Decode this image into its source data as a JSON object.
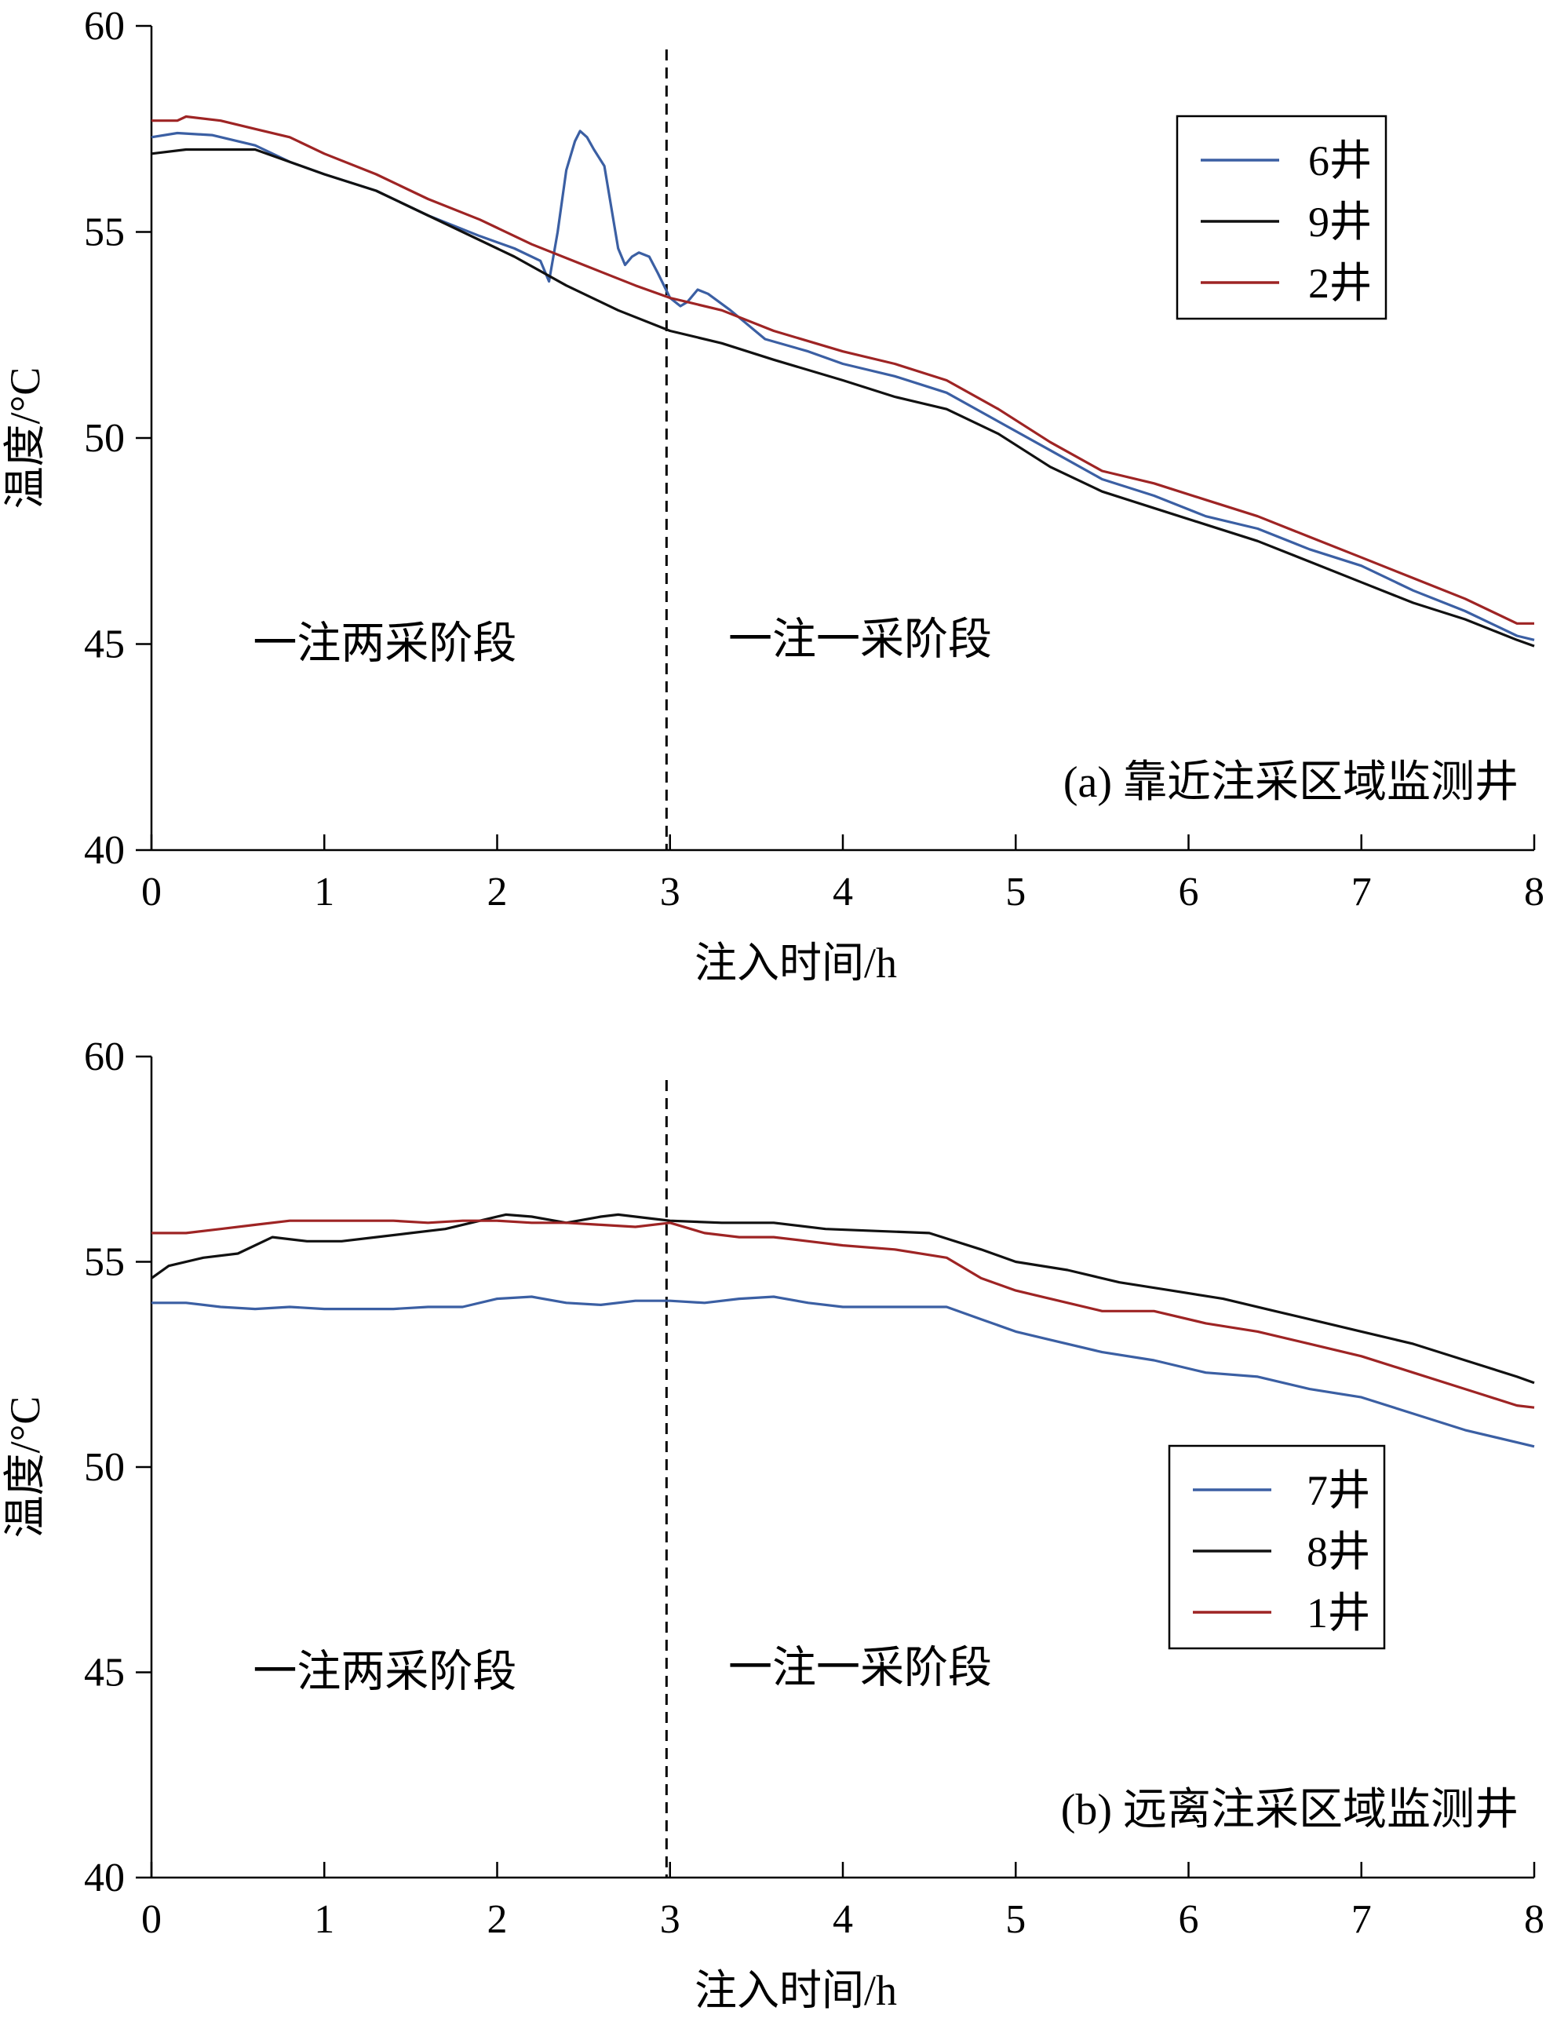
{
  "chart_data": [
    {
      "type": "line",
      "panel_label": "(a) 靠近注采区域监测井",
      "xlabel": "注入时间/h",
      "ylabel": "温度/°C",
      "xlim": [
        0,
        8
      ],
      "ylim": [
        40,
        60
      ],
      "x_ticks": [
        0,
        1,
        2,
        3,
        4,
        5,
        6,
        7,
        8
      ],
      "y_ticks": [
        40,
        45,
        50,
        55,
        60
      ],
      "grid": false,
      "legend_position": "top-right",
      "annotations": [
        {
          "text": "一注两采阶段",
          "x": 1.35,
          "y": 45
        },
        {
          "text": "一注一采阶段",
          "x": 4.1,
          "y": 45.1
        }
      ],
      "divider_x": 2.98,
      "series": [
        {
          "name": "6井",
          "color": "#3b5fa3",
          "points": [
            [
              0,
              57.3
            ],
            [
              0.15,
              57.4
            ],
            [
              0.35,
              57.35
            ],
            [
              0.6,
              57.1
            ],
            [
              0.8,
              56.7
            ],
            [
              1.0,
              56.4
            ],
            [
              1.3,
              56.0
            ],
            [
              1.6,
              55.4
            ],
            [
              1.9,
              54.9
            ],
            [
              2.1,
              54.6
            ],
            [
              2.25,
              54.3
            ],
            [
              2.3,
              53.8
            ],
            [
              2.35,
              55.0
            ],
            [
              2.4,
              56.5
            ],
            [
              2.45,
              57.2
            ],
            [
              2.48,
              57.45
            ],
            [
              2.52,
              57.3
            ],
            [
              2.56,
              57.0
            ],
            [
              2.62,
              56.6
            ],
            [
              2.66,
              55.6
            ],
            [
              2.7,
              54.6
            ],
            [
              2.74,
              54.2
            ],
            [
              2.78,
              54.4
            ],
            [
              2.82,
              54.5
            ],
            [
              2.88,
              54.4
            ],
            [
              2.93,
              54.0
            ],
            [
              3.0,
              53.4
            ],
            [
              3.06,
              53.2
            ],
            [
              3.1,
              53.3
            ],
            [
              3.16,
              53.6
            ],
            [
              3.22,
              53.5
            ],
            [
              3.35,
              53.1
            ],
            [
              3.55,
              52.4
            ],
            [
              3.8,
              52.1
            ],
            [
              4.0,
              51.8
            ],
            [
              4.3,
              51.5
            ],
            [
              4.6,
              51.1
            ],
            [
              4.9,
              50.4
            ],
            [
              5.2,
              49.7
            ],
            [
              5.5,
              49.0
            ],
            [
              5.8,
              48.6
            ],
            [
              6.1,
              48.1
            ],
            [
              6.4,
              47.8
            ],
            [
              6.7,
              47.3
            ],
            [
              7.0,
              46.9
            ],
            [
              7.3,
              46.3
            ],
            [
              7.6,
              45.8
            ],
            [
              7.9,
              45.2
            ],
            [
              8.0,
              45.1
            ]
          ]
        },
        {
          "name": "9井",
          "color": "#111111",
          "points": [
            [
              0,
              56.9
            ],
            [
              0.2,
              57.0
            ],
            [
              0.4,
              57.0
            ],
            [
              0.6,
              57.0
            ],
            [
              0.8,
              56.7
            ],
            [
              1.0,
              56.4
            ],
            [
              1.3,
              56.0
            ],
            [
              1.6,
              55.4
            ],
            [
              1.9,
              54.8
            ],
            [
              2.1,
              54.4
            ],
            [
              2.4,
              53.7
            ],
            [
              2.7,
              53.1
            ],
            [
              3.0,
              52.6
            ],
            [
              3.3,
              52.3
            ],
            [
              3.6,
              51.9
            ],
            [
              4.0,
              51.4
            ],
            [
              4.3,
              51.0
            ],
            [
              4.6,
              50.7
            ],
            [
              4.9,
              50.1
            ],
            [
              5.2,
              49.3
            ],
            [
              5.5,
              48.7
            ],
            [
              5.8,
              48.3
            ],
            [
              6.1,
              47.9
            ],
            [
              6.4,
              47.5
            ],
            [
              6.7,
              47.0
            ],
            [
              7.0,
              46.5
            ],
            [
              7.3,
              46.0
            ],
            [
              7.6,
              45.6
            ],
            [
              7.9,
              45.1
            ],
            [
              8.0,
              44.95
            ]
          ]
        },
        {
          "name": "2井",
          "color": "#9e2424",
          "points": [
            [
              0,
              57.7
            ],
            [
              0.15,
              57.7
            ],
            [
              0.2,
              57.8
            ],
            [
              0.4,
              57.7
            ],
            [
              0.6,
              57.5
            ],
            [
              0.8,
              57.3
            ],
            [
              1.0,
              56.9
            ],
            [
              1.3,
              56.4
            ],
            [
              1.6,
              55.8
            ],
            [
              1.9,
              55.3
            ],
            [
              2.2,
              54.7
            ],
            [
              2.5,
              54.2
            ],
            [
              2.8,
              53.7
            ],
            [
              3.0,
              53.4
            ],
            [
              3.3,
              53.1
            ],
            [
              3.6,
              52.6
            ],
            [
              4.0,
              52.1
            ],
            [
              4.3,
              51.8
            ],
            [
              4.6,
              51.4
            ],
            [
              4.9,
              50.7
            ],
            [
              5.2,
              49.9
            ],
            [
              5.5,
              49.2
            ],
            [
              5.8,
              48.9
            ],
            [
              6.1,
              48.5
            ],
            [
              6.4,
              48.1
            ],
            [
              6.7,
              47.6
            ],
            [
              7.0,
              47.1
            ],
            [
              7.3,
              46.6
            ],
            [
              7.6,
              46.1
            ],
            [
              7.9,
              45.5
            ],
            [
              8.0,
              45.5
            ]
          ]
        }
      ]
    },
    {
      "type": "line",
      "panel_label": "(b) 远离注采区域监测井",
      "xlabel": "注入时间/h",
      "ylabel": "温度/°C",
      "xlim": [
        0,
        8
      ],
      "ylim": [
        40,
        60
      ],
      "x_ticks": [
        0,
        1,
        2,
        3,
        4,
        5,
        6,
        7,
        8
      ],
      "y_ticks": [
        40,
        45,
        50,
        55,
        60
      ],
      "grid": false,
      "legend_position": "middle-right",
      "annotations": [
        {
          "text": "一注两采阶段",
          "x": 1.35,
          "y": 45
        },
        {
          "text": "一注一采阶段",
          "x": 4.1,
          "y": 45.1
        }
      ],
      "divider_x": 2.98,
      "series": [
        {
          "name": "7井",
          "color": "#3b5fa3",
          "points": [
            [
              0,
              54.0
            ],
            [
              0.2,
              54.0
            ],
            [
              0.4,
              53.9
            ],
            [
              0.6,
              53.85
            ],
            [
              0.8,
              53.9
            ],
            [
              1.0,
              53.85
            ],
            [
              1.2,
              53.85
            ],
            [
              1.4,
              53.85
            ],
            [
              1.6,
              53.9
            ],
            [
              1.8,
              53.9
            ],
            [
              2.0,
              54.1
            ],
            [
              2.2,
              54.15
            ],
            [
              2.4,
              54.0
            ],
            [
              2.6,
              53.95
            ],
            [
              2.8,
              54.05
            ],
            [
              3.0,
              54.05
            ],
            [
              3.2,
              54.0
            ],
            [
              3.4,
              54.1
            ],
            [
              3.6,
              54.15
            ],
            [
              3.8,
              54.0
            ],
            [
              4.0,
              53.9
            ],
            [
              4.3,
              53.9
            ],
            [
              4.6,
              53.9
            ],
            [
              4.8,
              53.6
            ],
            [
              5.0,
              53.3
            ],
            [
              5.2,
              53.1
            ],
            [
              5.5,
              52.8
            ],
            [
              5.8,
              52.6
            ],
            [
              6.1,
              52.3
            ],
            [
              6.4,
              52.2
            ],
            [
              6.7,
              51.9
            ],
            [
              7.0,
              51.7
            ],
            [
              7.3,
              51.3
            ],
            [
              7.6,
              50.9
            ],
            [
              7.9,
              50.6
            ],
            [
              8.0,
              50.5
            ]
          ]
        },
        {
          "name": "8井",
          "color": "#111111",
          "points": [
            [
              0,
              54.6
            ],
            [
              0.1,
              54.9
            ],
            [
              0.3,
              55.1
            ],
            [
              0.5,
              55.2
            ],
            [
              0.7,
              55.6
            ],
            [
              0.9,
              55.5
            ],
            [
              1.1,
              55.5
            ],
            [
              1.3,
              55.6
            ],
            [
              1.5,
              55.7
            ],
            [
              1.7,
              55.8
            ],
            [
              1.9,
              56.0
            ],
            [
              2.05,
              56.15
            ],
            [
              2.2,
              56.1
            ],
            [
              2.4,
              55.95
            ],
            [
              2.6,
              56.1
            ],
            [
              2.7,
              56.15
            ],
            [
              2.9,
              56.05
            ],
            [
              3.0,
              56.0
            ],
            [
              3.3,
              55.95
            ],
            [
              3.6,
              55.95
            ],
            [
              3.9,
              55.8
            ],
            [
              4.2,
              55.75
            ],
            [
              4.5,
              55.7
            ],
            [
              4.8,
              55.3
            ],
            [
              5.0,
              55.0
            ],
            [
              5.3,
              54.8
            ],
            [
              5.6,
              54.5
            ],
            [
              5.9,
              54.3
            ],
            [
              6.2,
              54.1
            ],
            [
              6.5,
              53.8
            ],
            [
              6.8,
              53.5
            ],
            [
              7.0,
              53.3
            ],
            [
              7.3,
              53.0
            ],
            [
              7.6,
              52.6
            ],
            [
              7.9,
              52.2
            ],
            [
              8.0,
              52.05
            ]
          ]
        },
        {
          "name": "1井",
          "color": "#9e2424",
          "points": [
            [
              0,
              55.7
            ],
            [
              0.2,
              55.7
            ],
            [
              0.4,
              55.8
            ],
            [
              0.6,
              55.9
            ],
            [
              0.8,
              56.0
            ],
            [
              1.0,
              56.0
            ],
            [
              1.2,
              56.0
            ],
            [
              1.4,
              56.0
            ],
            [
              1.6,
              55.95
            ],
            [
              1.8,
              56.0
            ],
            [
              2.0,
              56.0
            ],
            [
              2.2,
              55.95
            ],
            [
              2.4,
              55.95
            ],
            [
              2.6,
              55.9
            ],
            [
              2.8,
              55.85
            ],
            [
              3.0,
              55.95
            ],
            [
              3.2,
              55.7
            ],
            [
              3.4,
              55.6
            ],
            [
              3.6,
              55.6
            ],
            [
              3.8,
              55.5
            ],
            [
              4.0,
              55.4
            ],
            [
              4.3,
              55.3
            ],
            [
              4.6,
              55.1
            ],
            [
              4.8,
              54.6
            ],
            [
              5.0,
              54.3
            ],
            [
              5.2,
              54.1
            ],
            [
              5.5,
              53.8
            ],
            [
              5.8,
              53.8
            ],
            [
              6.1,
              53.5
            ],
            [
              6.4,
              53.3
            ],
            [
              6.7,
              53.0
            ],
            [
              7.0,
              52.7
            ],
            [
              7.3,
              52.3
            ],
            [
              7.6,
              51.9
            ],
            [
              7.9,
              51.5
            ],
            [
              8.0,
              51.45
            ]
          ]
        }
      ]
    }
  ]
}
